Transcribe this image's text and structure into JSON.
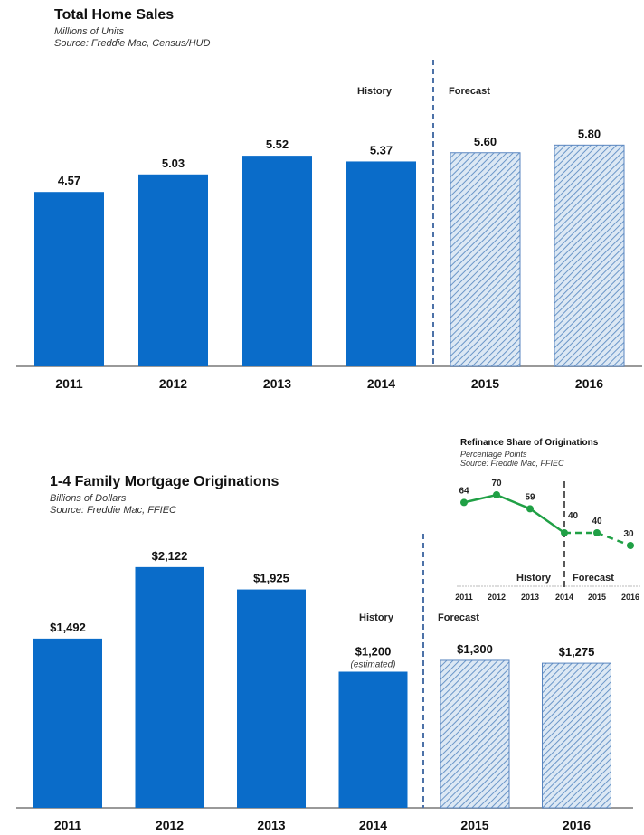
{
  "chart_data": [
    {
      "id": "home_sales",
      "type": "bar",
      "title": "Total Home Sales",
      "subtitle": "Millions of Units",
      "source": "Source: Freddie Mac, Census/HUD",
      "categories": [
        "2011",
        "2012",
        "2013",
        "2014",
        "2015",
        "2016"
      ],
      "values": [
        4.57,
        5.03,
        5.52,
        5.37,
        5.6,
        5.8
      ],
      "value_labels": [
        "4.57",
        "5.03",
        "5.52",
        "5.37",
        "5.60",
        "5.80"
      ],
      "forecast": [
        false,
        false,
        false,
        false,
        true,
        true
      ],
      "history_label": "History",
      "forecast_label": "Forecast",
      "ylim": [
        0,
        9.6
      ],
      "xlabel": "",
      "ylabel": "",
      "grid": false
    },
    {
      "id": "mortgage_originations",
      "type": "bar",
      "title": "1-4 Family Mortgage Originations",
      "subtitle": "Billions of Dollars",
      "source": "Source: Freddie Mac, FFIEC",
      "categories": [
        "2011",
        "2012",
        "2013",
        "2014",
        "2015",
        "2016"
      ],
      "values": [
        1492,
        2122,
        1925,
        1200,
        1300,
        1275
      ],
      "value_labels": [
        "$1,492",
        "$2,122",
        "$1,925",
        "$1,200",
        "$1,300",
        "$1,275"
      ],
      "notes": [
        "",
        "",
        "",
        "(estimated)",
        "",
        ""
      ],
      "forecast": [
        false,
        false,
        false,
        false,
        true,
        true
      ],
      "history_label": "History",
      "forecast_label": "Forecast",
      "ylim": [
        0,
        2400
      ],
      "xlabel": "",
      "ylabel": "",
      "grid": false
    },
    {
      "id": "refinance_share",
      "type": "line",
      "title": "Refinance Share of Originations",
      "subtitle": "Percentage Points",
      "source": "Source: Freddie Mac, FFIEC",
      "categories": [
        "2011",
        "2012",
        "2013",
        "2014",
        "2015",
        "2016"
      ],
      "values": [
        64,
        70,
        59,
        40,
        40,
        30
      ],
      "value_labels": [
        "64",
        "70",
        "59",
        "40",
        "40",
        "30"
      ],
      "forecast": [
        false,
        false,
        false,
        false,
        true,
        true
      ],
      "history_label": "History",
      "forecast_label": "Forecast",
      "ylim": [
        0,
        100
      ],
      "legend": "none",
      "grid": false
    }
  ],
  "colors": {
    "bar": "#0a6cc9",
    "forecast_fill": "#c9dcef",
    "forecast_hatch": "#6a96c8",
    "forecast_border": "#5a86c0",
    "divider": "#4d72a8",
    "axis": "#999999",
    "line": "#20a045"
  }
}
